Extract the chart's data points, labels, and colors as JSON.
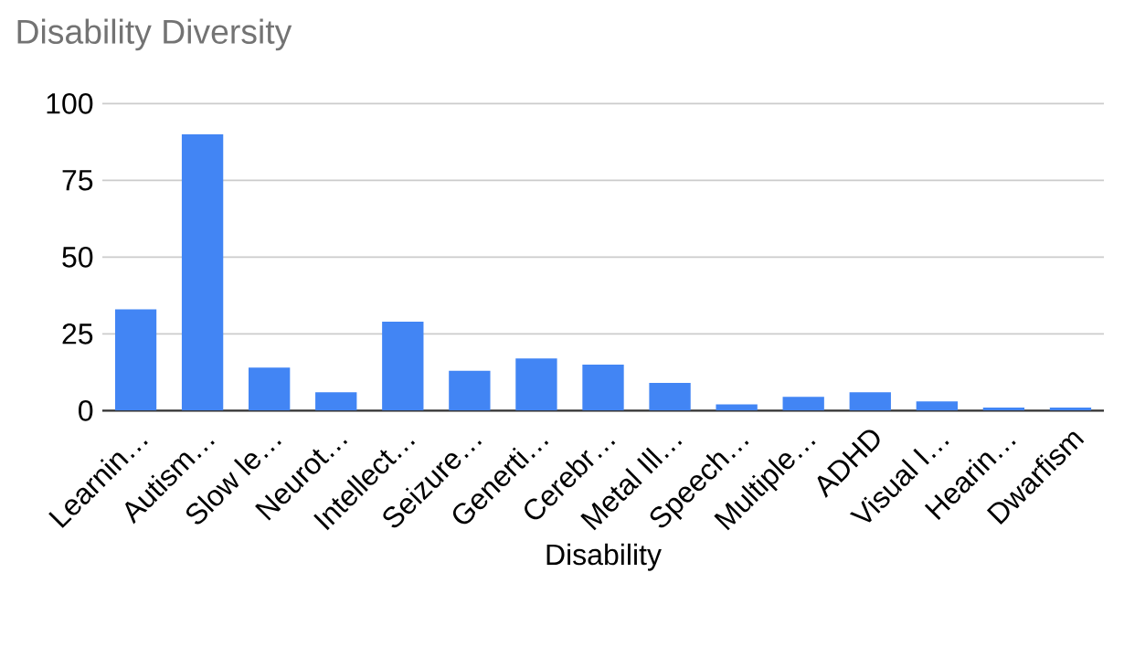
{
  "chart_data": {
    "type": "bar",
    "title": "Disability Diversity",
    "xlabel": "Disability",
    "categories": [
      "Learnin…",
      "Autism…",
      "Slow le…",
      "Neurot…",
      "Intellect…",
      "Seizure…",
      "Generti…",
      "Cerebr…",
      "Metal Ill…",
      "Speech…",
      "Multiple…",
      "ADHD",
      "Visual I…",
      "Hearin…",
      "Dwarfism"
    ],
    "values": [
      33,
      90,
      14,
      6,
      29,
      13,
      17,
      15,
      9,
      2,
      4.5,
      6,
      3,
      1,
      1
    ],
    "color": "#4285f4",
    "ylim": [
      0,
      100
    ],
    "yticks": [
      0,
      25,
      50,
      75,
      100
    ],
    "grid": "y"
  }
}
